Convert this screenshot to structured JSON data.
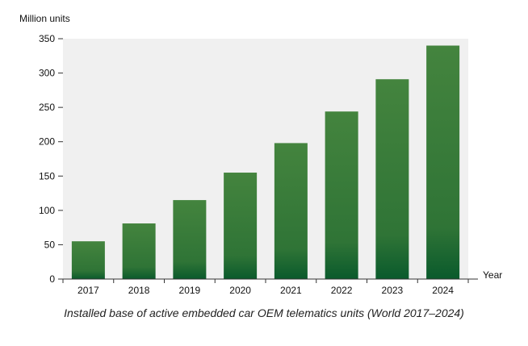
{
  "chart_data": {
    "type": "bar",
    "title": "",
    "caption": "Installed base of active embedded car OEM telematics units (World 2017–2024)",
    "xlabel": "Year",
    "ylabel": "Million units",
    "categories": [
      "2017",
      "2018",
      "2019",
      "2020",
      "2021",
      "2022",
      "2023",
      "2024"
    ],
    "values": [
      55,
      81,
      115,
      155,
      198,
      244,
      291,
      340
    ],
    "ylim": [
      0,
      350
    ],
    "yticks": [
      0,
      50,
      100,
      150,
      200,
      250,
      300,
      350
    ],
    "grid": false,
    "legend": "none",
    "bar_color_top": "#44843e",
    "bar_color_bottom": "#0a5a2c",
    "plot_background": "#f0f0f0"
  }
}
